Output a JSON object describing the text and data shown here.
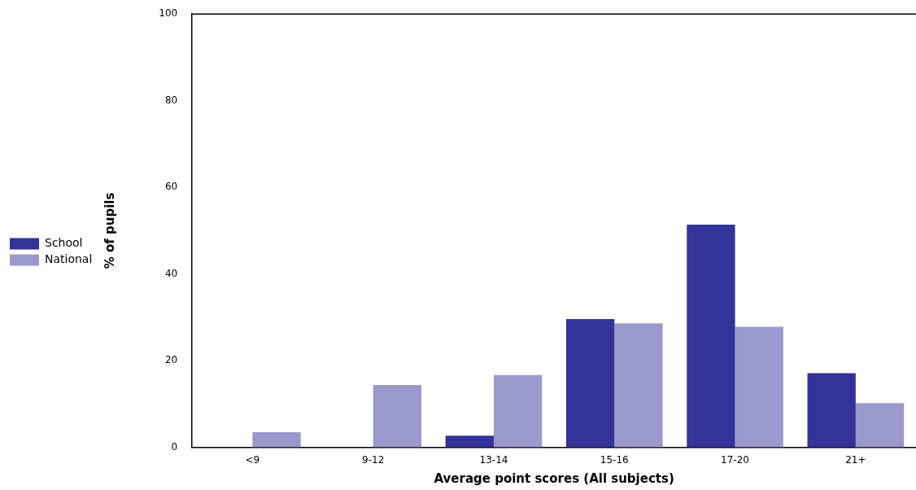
{
  "chart_data": {
    "type": "bar",
    "xlabel": "Average point scores (All subjects)",
    "ylabel": "% of pupils",
    "categories": [
      "<9",
      "9-12",
      "13-14",
      "15-16",
      "17-20",
      "21+"
    ],
    "series": [
      {
        "name": "School",
        "color": "#333399",
        "values": [
          0,
          0,
          2.7,
          29.6,
          51.4,
          17.1
        ]
      },
      {
        "name": "National",
        "color": "#9999cc",
        "values": [
          3.5,
          14.4,
          16.7,
          28.6,
          27.8,
          10.2
        ]
      }
    ],
    "ylim": [
      0,
      100
    ],
    "yticks": [
      0,
      20,
      40,
      60,
      80,
      100
    ],
    "grid": false,
    "legend": "left"
  }
}
